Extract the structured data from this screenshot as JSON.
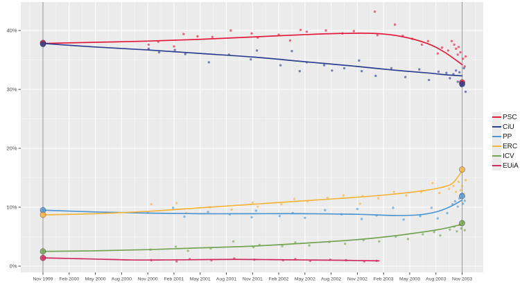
{
  "chart_data": {
    "type": "scatter",
    "title": "",
    "xlabel": "",
    "ylabel": "",
    "grid": true,
    "panel_color": "#ebebeb",
    "grid_major_color": "#ffffff",
    "grid_minor_color": "#ffffff",
    "axis_text_color": "#4a4a4a",
    "tick_color": "#333333",
    "election_line_color": "#8a8a8a",
    "x_axis": {
      "unit": "months since Nov 1999",
      "tick_months": [
        0,
        3,
        6,
        9,
        12,
        15,
        18,
        21,
        24,
        27,
        30,
        33,
        36,
        39,
        42,
        45,
        48
      ],
      "tick_labels": [
        "Nov 1999",
        "Feb 2000",
        "May 2000",
        "Aug 2000",
        "Nov 2000",
        "Feb 2001",
        "May 2001",
        "Aug 2001",
        "Nov 2001",
        "Feb 2002",
        "May 2002",
        "Aug 2002",
        "Nov 2002",
        "Feb 2003",
        "May 2003",
        "Aug 2003",
        "Nov 2003"
      ],
      "minor_months": [
        -1.5,
        1.5,
        4.5,
        7.5,
        10.5,
        13.5,
        16.5,
        19.5,
        22.5,
        25.5,
        28.5,
        31.5,
        34.5,
        37.5,
        40.5,
        43.5,
        46.5,
        49.5
      ],
      "range": [
        -2.5,
        50.4
      ]
    },
    "y_axis": {
      "tick_values": [
        0,
        10,
        20,
        30,
        40
      ],
      "tick_labels": [
        "0%",
        "10%",
        "20%",
        "30%",
        "40%"
      ],
      "minor_values": [
        5,
        15,
        25,
        35
      ],
      "range": [
        -1.1,
        44.8
      ]
    },
    "election_months": [
      0,
      48
    ],
    "series": [
      {
        "name": "PSC",
        "color": "#e41a3c",
        "trend": [
          [
            0,
            37.8
          ],
          [
            6,
            38.0
          ],
          [
            12,
            38.2
          ],
          [
            18,
            38.5
          ],
          [
            24,
            38.9
          ],
          [
            30,
            39.3
          ],
          [
            34,
            39.5
          ],
          [
            38,
            39.5
          ],
          [
            41,
            39.0
          ],
          [
            44,
            37.8
          ],
          [
            46,
            36.3
          ],
          [
            48,
            34.2
          ]
        ],
        "polls": [
          [
            12.1,
            37.6
          ],
          [
            13.2,
            38.1
          ],
          [
            15.0,
            37.3
          ],
          [
            16.1,
            39.4
          ],
          [
            17.7,
            39.0
          ],
          [
            19.4,
            38.9
          ],
          [
            21.5,
            40.0
          ],
          [
            23.9,
            39.5
          ],
          [
            24.6,
            38.8
          ],
          [
            27.0,
            39.3
          ],
          [
            28.3,
            38.3
          ],
          [
            29.5,
            40.1
          ],
          [
            30.2,
            39.8
          ],
          [
            32.4,
            40.0
          ],
          [
            34.3,
            39.5
          ],
          [
            35.6,
            39.9
          ],
          [
            38.0,
            43.2
          ],
          [
            38.3,
            39.2
          ],
          [
            40.3,
            41.0
          ],
          [
            41.2,
            39.1
          ],
          [
            42.3,
            38.6
          ],
          [
            43.4,
            37.6
          ],
          [
            44.1,
            38.2
          ],
          [
            45.2,
            36.1
          ],
          [
            45.7,
            37.1
          ],
          [
            46.4,
            36.6
          ],
          [
            46.8,
            38.2
          ],
          [
            47.1,
            37.6
          ],
          [
            47.3,
            36.9
          ],
          [
            47.5,
            35.9
          ],
          [
            47.6,
            37.2
          ],
          [
            47.8,
            36.3
          ],
          [
            48.1,
            35.2
          ],
          [
            48.3,
            33.9
          ],
          [
            48.4,
            35.6
          ]
        ],
        "elections": [
          [
            0,
            37.9
          ],
          [
            48,
            31.2
          ]
        ]
      },
      {
        "name": "CiU",
        "color": "#2c3e8f",
        "trend": [
          [
            0,
            37.8
          ],
          [
            6,
            37.2
          ],
          [
            12,
            36.7
          ],
          [
            18,
            36.1
          ],
          [
            24,
            35.5
          ],
          [
            30,
            34.7
          ],
          [
            36,
            33.9
          ],
          [
            40,
            33.3
          ],
          [
            44,
            32.8
          ],
          [
            46,
            32.5
          ],
          [
            48,
            32.3
          ]
        ],
        "polls": [
          [
            12.1,
            36.9
          ],
          [
            13.3,
            36.3
          ],
          [
            15.1,
            36.7
          ],
          [
            16.3,
            36.0
          ],
          [
            19.0,
            34.6
          ],
          [
            21.3,
            35.9
          ],
          [
            23.8,
            35.1
          ],
          [
            24.5,
            36.6
          ],
          [
            27.2,
            34.1
          ],
          [
            28.5,
            36.5
          ],
          [
            29.4,
            33.1
          ],
          [
            30.2,
            34.6
          ],
          [
            32.2,
            34.1
          ],
          [
            33.1,
            33.2
          ],
          [
            34.5,
            33.6
          ],
          [
            36.2,
            34.9
          ],
          [
            36.5,
            33.1
          ],
          [
            38.1,
            32.3
          ],
          [
            39.9,
            33.6
          ],
          [
            41.5,
            32.1
          ],
          [
            43.1,
            33.4
          ],
          [
            44.2,
            31.6
          ],
          [
            45.3,
            33.0
          ],
          [
            46.2,
            32.8
          ],
          [
            46.6,
            31.9
          ],
          [
            47.0,
            32.6
          ],
          [
            47.3,
            33.2
          ],
          [
            47.5,
            31.3
          ],
          [
            47.7,
            32.9
          ],
          [
            47.9,
            30.6
          ],
          [
            48.2,
            33.6
          ],
          [
            48.4,
            29.6
          ]
        ],
        "elections": [
          [
            0,
            37.7
          ],
          [
            48,
            30.9
          ]
        ]
      },
      {
        "name": "PP",
        "color": "#4e96d2",
        "trend": [
          [
            0,
            9.5
          ],
          [
            6,
            9.2
          ],
          [
            12,
            9.0
          ],
          [
            18,
            8.9
          ],
          [
            24,
            8.9
          ],
          [
            30,
            8.9
          ],
          [
            36,
            8.8
          ],
          [
            40,
            8.6
          ],
          [
            43,
            8.7
          ],
          [
            45,
            9.2
          ],
          [
            46.5,
            10.0
          ],
          [
            48,
            11.2
          ]
        ],
        "polls": [
          [
            12.0,
            9.1
          ],
          [
            14.9,
            9.9
          ],
          [
            16.2,
            8.4
          ],
          [
            18.9,
            9.2
          ],
          [
            21.4,
            8.8
          ],
          [
            23.9,
            8.3
          ],
          [
            24.4,
            9.4
          ],
          [
            27.1,
            8.5
          ],
          [
            28.6,
            9.0
          ],
          [
            30.0,
            8.2
          ],
          [
            32.3,
            9.5
          ],
          [
            34.2,
            8.8
          ],
          [
            36.0,
            9.7
          ],
          [
            36.5,
            8.0
          ],
          [
            38.2,
            8.6
          ],
          [
            40.1,
            9.9
          ],
          [
            41.3,
            7.9
          ],
          [
            43.2,
            8.5
          ],
          [
            44.5,
            9.9
          ],
          [
            45.2,
            8.1
          ],
          [
            46.3,
            9.0
          ],
          [
            46.9,
            10.5
          ],
          [
            47.2,
            11.0
          ],
          [
            47.5,
            10.1
          ],
          [
            47.7,
            11.5
          ],
          [
            47.9,
            12.2
          ],
          [
            48.1,
            10.6
          ],
          [
            48.3,
            11.1
          ]
        ],
        "elections": [
          [
            0,
            9.5
          ],
          [
            48,
            11.9
          ]
        ]
      },
      {
        "name": "ERC",
        "color": "#f3b43c",
        "trend": [
          [
            0,
            8.7
          ],
          [
            6,
            8.9
          ],
          [
            12,
            9.3
          ],
          [
            18,
            9.9
          ],
          [
            24,
            10.5
          ],
          [
            30,
            11.1
          ],
          [
            36,
            11.7
          ],
          [
            40,
            12.2
          ],
          [
            44,
            12.9
          ],
          [
            46,
            13.5
          ],
          [
            47,
            14.2
          ],
          [
            48,
            16.2
          ]
        ],
        "polls": [
          [
            12.4,
            10.5
          ],
          [
            15.3,
            10.7
          ],
          [
            16.4,
            9.0
          ],
          [
            19.1,
            10.0
          ],
          [
            21.6,
            9.6
          ],
          [
            24.0,
            10.8
          ],
          [
            24.6,
            10.1
          ],
          [
            27.3,
            10.5
          ],
          [
            28.8,
            11.4
          ],
          [
            30.3,
            11.0
          ],
          [
            32.6,
            11.6
          ],
          [
            34.4,
            12.0
          ],
          [
            36.3,
            10.6
          ],
          [
            36.6,
            11.9
          ],
          [
            38.4,
            11.5
          ],
          [
            40.2,
            12.6
          ],
          [
            41.6,
            12.0
          ],
          [
            43.3,
            12.6
          ],
          [
            44.6,
            14.1
          ],
          [
            45.4,
            12.4
          ],
          [
            46.5,
            13.1
          ],
          [
            47.0,
            13.6
          ],
          [
            47.3,
            12.6
          ],
          [
            47.6,
            14.3
          ],
          [
            47.8,
            12.9
          ],
          [
            48.0,
            13.6
          ],
          [
            48.2,
            12.3
          ],
          [
            48.4,
            14.6
          ]
        ],
        "elections": [
          [
            0,
            8.7
          ],
          [
            48,
            16.4
          ]
        ]
      },
      {
        "name": "ICV",
        "color": "#74a352",
        "trend": [
          [
            0,
            2.5
          ],
          [
            6,
            2.6
          ],
          [
            12,
            2.8
          ],
          [
            18,
            3.1
          ],
          [
            24,
            3.4
          ],
          [
            30,
            3.9
          ],
          [
            36,
            4.5
          ],
          [
            40,
            5.1
          ],
          [
            44,
            5.9
          ],
          [
            46,
            6.4
          ],
          [
            48,
            7.1
          ]
        ],
        "polls": [
          [
            12.3,
            2.8
          ],
          [
            15.2,
            3.3
          ],
          [
            16.6,
            2.6
          ],
          [
            19.2,
            3.0
          ],
          [
            21.8,
            4.2
          ],
          [
            24.1,
            3.2
          ],
          [
            24.8,
            3.6
          ],
          [
            27.4,
            3.4
          ],
          [
            28.9,
            4.0
          ],
          [
            30.5,
            3.5
          ],
          [
            32.8,
            4.1
          ],
          [
            34.6,
            3.8
          ],
          [
            36.7,
            4.4
          ],
          [
            38.5,
            4.2
          ],
          [
            40.4,
            5.0
          ],
          [
            41.8,
            4.6
          ],
          [
            43.5,
            5.4
          ],
          [
            44.8,
            5.8
          ],
          [
            45.5,
            5.2
          ],
          [
            46.6,
            6.2
          ],
          [
            47.1,
            6.7
          ],
          [
            47.4,
            5.9
          ],
          [
            47.7,
            7.0
          ],
          [
            47.9,
            6.4
          ],
          [
            48.1,
            7.4
          ],
          [
            48.3,
            6.1
          ]
        ],
        "elections": [
          [
            0,
            2.5
          ],
          [
            48,
            7.3
          ]
        ]
      },
      {
        "name": "EUiA",
        "color": "#ce2b5e",
        "trend": [
          [
            0,
            1.4
          ],
          [
            3,
            1.3
          ],
          [
            6,
            1.2
          ],
          [
            10,
            1.05
          ],
          [
            14,
            1.05
          ],
          [
            18,
            1.1
          ],
          [
            22,
            1.15
          ],
          [
            26,
            1.1
          ],
          [
            30,
            1.05
          ],
          [
            34,
            1.0
          ],
          [
            36,
            0.95
          ],
          [
            38.5,
            0.9
          ]
        ],
        "polls": [
          [
            12.4,
            1.0
          ],
          [
            15.3,
            0.8
          ],
          [
            16.8,
            1.2
          ],
          [
            19.3,
            1.0
          ],
          [
            21.9,
            1.3
          ],
          [
            24.2,
            1.1
          ],
          [
            27.5,
            1.0
          ],
          [
            28.9,
            1.2
          ],
          [
            30.6,
            0.9
          ],
          [
            32.9,
            1.1
          ],
          [
            34.7,
            1.0
          ],
          [
            36.8,
            0.8
          ],
          [
            38.2,
            0.9
          ]
        ],
        "elections": [
          [
            0,
            1.4
          ]
        ]
      }
    ]
  },
  "legend": {
    "items": [
      {
        "label": "PSC",
        "color": "#e41a3c"
      },
      {
        "label": "CiU",
        "color": "#2c3e8f"
      },
      {
        "label": "PP",
        "color": "#4e96d2"
      },
      {
        "label": "ERC",
        "color": "#f3b43c"
      },
      {
        "label": "ICV",
        "color": "#74a352"
      },
      {
        "label": "EUiA",
        "color": "#ce2b5e"
      }
    ]
  }
}
